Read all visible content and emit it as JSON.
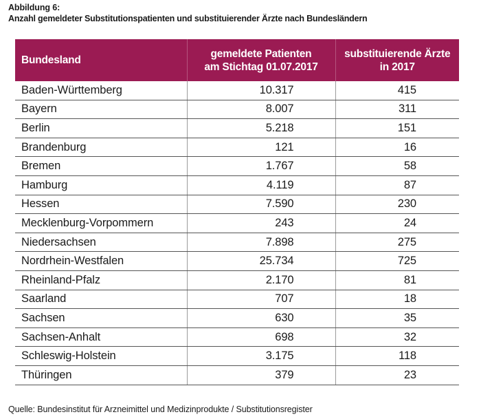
{
  "caption": {
    "label": "Abbildung 6:",
    "title": "Anzahl gemeldeter Substitutionspatienten und substituierender Ärzte nach Bundesländern"
  },
  "table": {
    "headers": {
      "bundesland": "Bundesland",
      "patients_line1": "gemeldete Patienten",
      "patients_line2": "am Stichtag 01.07.2017",
      "doctors_line1": "substituierende Ärzte",
      "doctors_line2": "in 2017"
    },
    "rows": [
      {
        "name": "Baden-Württemberg",
        "patients": "10.317",
        "doctors": "415"
      },
      {
        "name": "Bayern",
        "patients": "8.007",
        "doctors": "311"
      },
      {
        "name": "Berlin",
        "patients": "5.218",
        "doctors": "151"
      },
      {
        "name": "Brandenburg",
        "patients": "121",
        "doctors": "16"
      },
      {
        "name": "Bremen",
        "patients": "1.767",
        "doctors": "58"
      },
      {
        "name": "Hamburg",
        "patients": "4.119",
        "doctors": "87"
      },
      {
        "name": "Hessen",
        "patients": "7.590",
        "doctors": "230"
      },
      {
        "name": "Mecklenburg-Vorpommern",
        "patients": "243",
        "doctors": "24"
      },
      {
        "name": "Niedersachsen",
        "patients": "7.898",
        "doctors": "275"
      },
      {
        "name": "Nordrhein-Westfalen",
        "patients": "25.734",
        "doctors": "725"
      },
      {
        "name": "Rheinland-Pfalz",
        "patients": "2.170",
        "doctors": "81"
      },
      {
        "name": "Saarland",
        "patients": "707",
        "doctors": "18"
      },
      {
        "name": "Sachsen",
        "patients": "630",
        "doctors": "35"
      },
      {
        "name": "Sachsen-Anhalt",
        "patients": "698",
        "doctors": "32"
      },
      {
        "name": "Schleswig-Holstein",
        "patients": "3.175",
        "doctors": "118"
      },
      {
        "name": "Thüringen",
        "patients": "379",
        "doctors": "23"
      }
    ]
  },
  "source": "Quelle: Bundesinstitut für Arzneimittel und Medizinprodukte / Substitutionsregister",
  "colors": {
    "header_background": "#9b1b53",
    "header_text": "#ffffff"
  }
}
